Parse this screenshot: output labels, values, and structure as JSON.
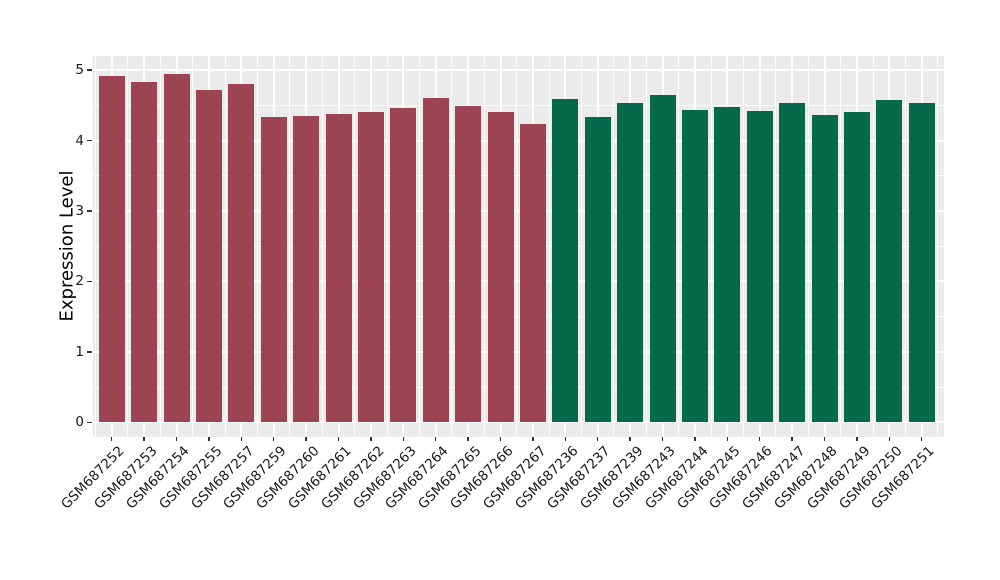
{
  "figure": {
    "background_color": "#ffffff",
    "panel_background_color": "#ebebeb",
    "gridline_color": "#ffffff",
    "axis_tick_color": "#333333",
    "axis_text_color": "#1a1a1a"
  },
  "chart_data": {
    "type": "bar",
    "title": "",
    "xlabel": "",
    "ylabel": "Expression Level",
    "ylim": [
      0,
      5
    ],
    "yticks": [
      0,
      1,
      2,
      3,
      4,
      5
    ],
    "ytick_labels": [
      "0",
      "1",
      "2",
      "3",
      "4",
      "5"
    ],
    "grid": true,
    "legend": false,
    "categories": [
      "GSM687252",
      "GSM687253",
      "GSM687254",
      "GSM687255",
      "GSM687257",
      "GSM687259",
      "GSM687260",
      "GSM687261",
      "GSM687262",
      "GSM687263",
      "GSM687264",
      "GSM687265",
      "GSM687266",
      "GSM687267",
      "GSM687236",
      "GSM687237",
      "GSM687239",
      "GSM687243",
      "GSM687244",
      "GSM687245",
      "GSM687246",
      "GSM687247",
      "GSM687248",
      "GSM687249",
      "GSM687250",
      "GSM687251"
    ],
    "values": [
      4.91,
      4.83,
      4.95,
      4.71,
      4.8,
      4.33,
      4.35,
      4.38,
      4.41,
      4.46,
      4.6,
      4.49,
      4.41,
      4.24,
      4.59,
      4.34,
      4.53,
      4.65,
      4.43,
      4.47,
      4.42,
      4.53,
      4.36,
      4.41,
      4.58,
      4.53
    ],
    "bar_groups": [
      "A",
      "A",
      "A",
      "A",
      "A",
      "A",
      "A",
      "A",
      "A",
      "A",
      "A",
      "A",
      "A",
      "A",
      "B",
      "B",
      "B",
      "B",
      "B",
      "B",
      "B",
      "B",
      "B",
      "B",
      "B",
      "B"
    ],
    "group_colors": {
      "A": "#9d4452",
      "B": "#066a4a"
    }
  }
}
